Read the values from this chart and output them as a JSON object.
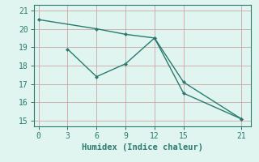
{
  "line1_x": [
    0,
    6,
    9,
    12,
    15,
    21
  ],
  "line1_y": [
    20.5,
    20.0,
    19.7,
    19.5,
    16.5,
    15.1
  ],
  "line2_x": [
    3,
    6,
    9,
    12,
    15,
    21
  ],
  "line2_y": [
    18.9,
    17.4,
    18.1,
    19.5,
    17.1,
    15.1
  ],
  "line_color": "#2a7b6e",
  "bg_color": "#e0f5f0",
  "grid_color": "#c9a8a8",
  "xlabel": "Humidex (Indice chaleur)",
  "xlim": [
    -0.5,
    22
  ],
  "ylim": [
    14.7,
    21.3
  ],
  "xticks": [
    0,
    3,
    6,
    9,
    12,
    15,
    21
  ],
  "yticks": [
    15,
    16,
    17,
    18,
    19,
    20,
    21
  ],
  "tick_fontsize": 7,
  "xlabel_fontsize": 7.5
}
